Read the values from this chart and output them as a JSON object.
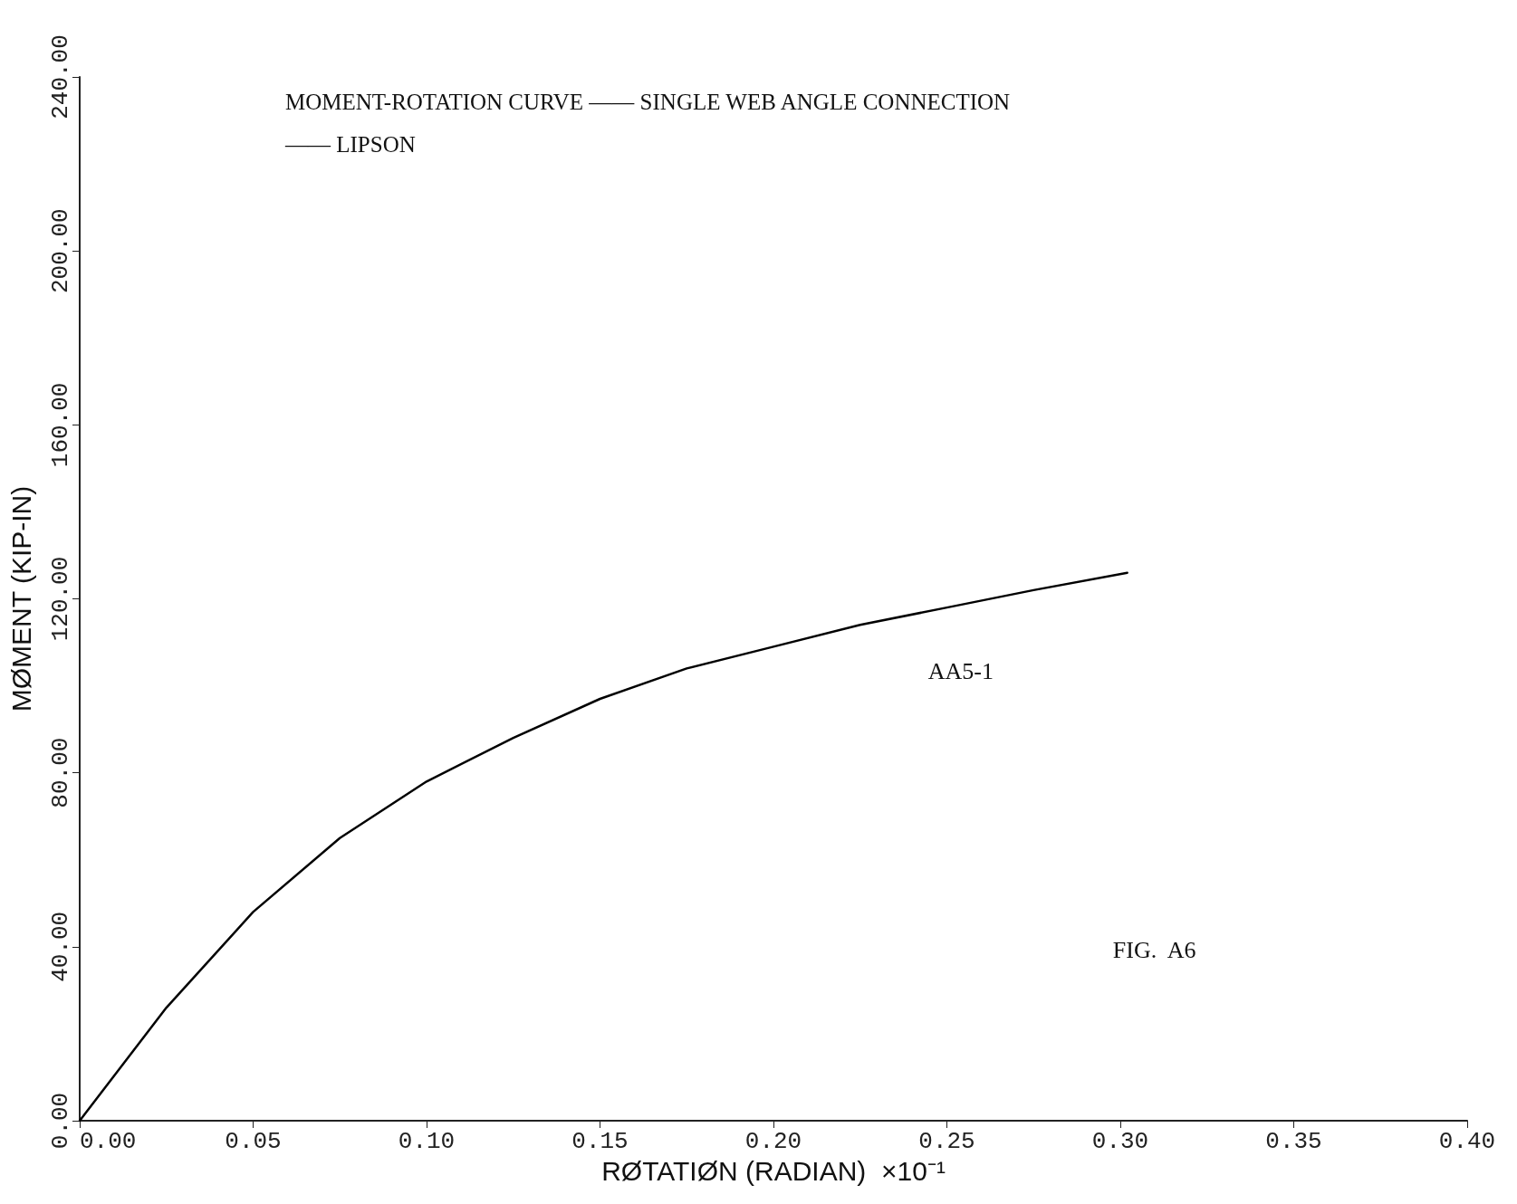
{
  "chart_data": {
    "type": "line",
    "title": "MOMENT-ROTATION CURVE —— SINGLE WEB ANGLE CONNECTION",
    "subtitle": "—— LIPSON",
    "xlabel": "RØTATIØN (RADIAN)  ×10⁻¹",
    "ylabel": "MØMENT (KIP-IN)",
    "x": [
      0,
      0.025,
      0.05,
      0.075,
      0.1,
      0.125,
      0.15,
      0.175,
      0.2,
      0.225,
      0.25,
      0.275,
      0.302
    ],
    "series": [
      {
        "color": "#000000",
        "values": [
          0,
          26,
          48,
          65,
          78,
          88,
          97,
          104,
          109,
          114,
          118,
          122,
          126
        ]
      }
    ],
    "xlim": [
      0,
      0.4
    ],
    "xticks": [
      {
        "value": 0,
        "label": "0.00"
      },
      {
        "value": 0.05,
        "label": "0.05"
      },
      {
        "value": 0.1,
        "label": "0.10"
      },
      {
        "value": 0.15,
        "label": "0.15"
      },
      {
        "value": 0.2,
        "label": "0.20"
      },
      {
        "value": 0.25,
        "label": "0.25"
      },
      {
        "value": 0.3,
        "label": "0.30"
      },
      {
        "value": 0.35,
        "label": "0.35"
      },
      {
        "value": 0.4,
        "label": "0.40"
      }
    ],
    "ylim": [
      0,
      240
    ],
    "yticks": [
      {
        "value": 0,
        "label": "0.00"
      },
      {
        "value": 40,
        "label": "40.00"
      },
      {
        "value": 80,
        "label": "80.00"
      },
      {
        "value": 120,
        "label": "120.00"
      },
      {
        "value": 160,
        "label": "160.00"
      },
      {
        "value": 200,
        "label": "200.00"
      },
      {
        "value": 240,
        "label": "240.00"
      }
    ],
    "annotations": [
      "AA5-1",
      "FIG.  A6"
    ],
    "grid": false,
    "marker": "none",
    "line_style": "solid"
  }
}
